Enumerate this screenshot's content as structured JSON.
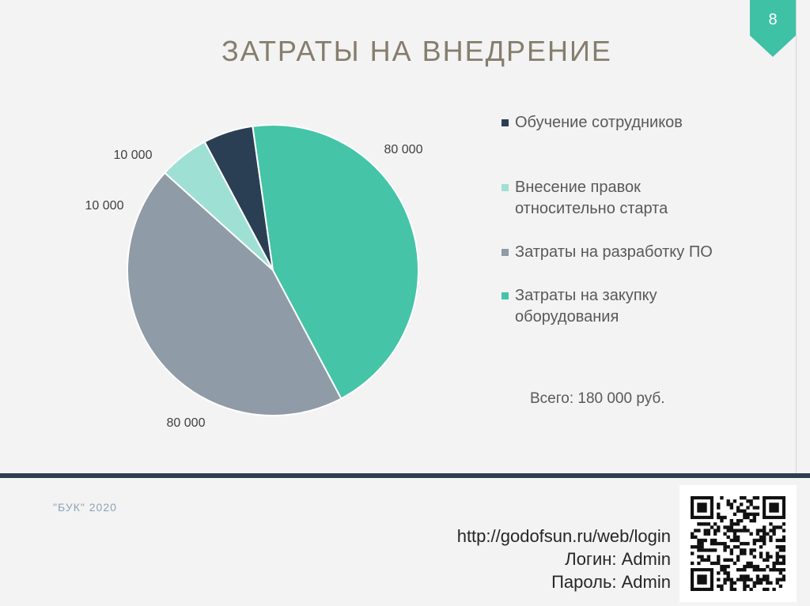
{
  "page": {
    "number": "8",
    "title": "ЗАТРАТЫ НА ВНЕДРЕНИЕ",
    "total_label": "Всего: 180 000 руб.",
    "footer": "\"БУК\" 2020",
    "login_url": "http://godofsun.ru/web/login",
    "login_line": "Логин: Admin",
    "password_line": "Пароль: Admin"
  },
  "colors": {
    "accent": "#3fc1a6",
    "title": "#867d6d",
    "footer_bar": "#2c3e50"
  },
  "chart_data": {
    "type": "pie",
    "title": "",
    "categories": [
      "Обучение сотрудников",
      "Внесение правок относительно старта",
      "Затраты на разработку ПО",
      "Затраты на закупку оборудования"
    ],
    "values": [
      10000,
      10000,
      80000,
      80000
    ],
    "value_labels": [
      "10 000",
      "10 000",
      "80 000",
      "80 000"
    ],
    "colors": [
      "#2b3f54",
      "#9fe0d4",
      "#8f9ba6",
      "#45c4a8"
    ],
    "legend": "right",
    "start_angle_deg": 262,
    "direction": "counterclockwise"
  }
}
